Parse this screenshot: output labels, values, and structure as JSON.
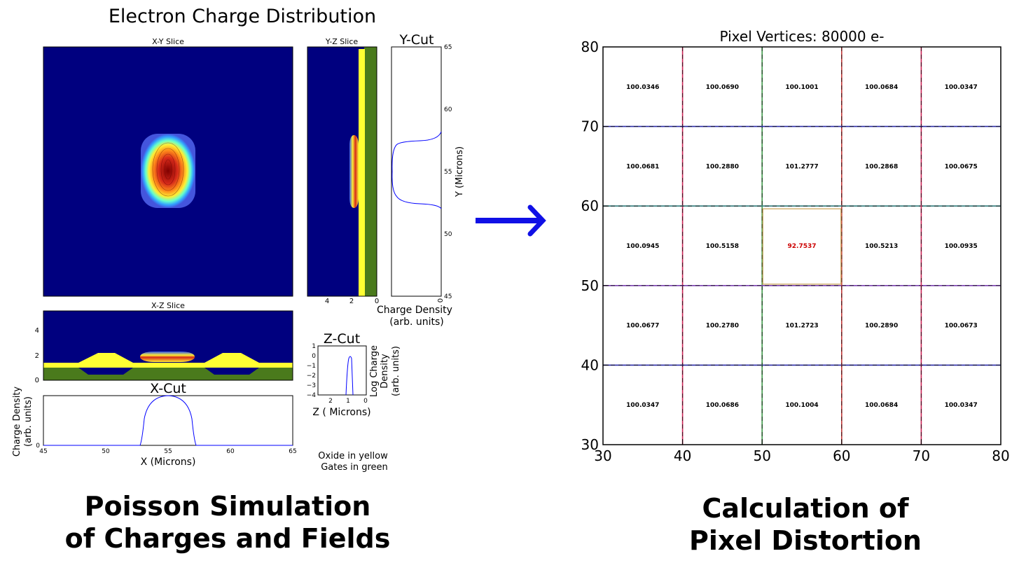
{
  "left": {
    "title": "Electron Charge Distribution",
    "xy_slice_title": "X-Y Slice",
    "yz_slice_title": "Y-Z Slice",
    "xz_slice_title": "X-Z Slice",
    "xcut_title": "X-Cut",
    "ycut_title": "Y-Cut",
    "zcut_title": "Z-Cut",
    "yz_xticks": [
      "4",
      "2",
      "0"
    ],
    "xz_yticks": [
      "4",
      "2",
      "0"
    ],
    "ycut_xtick": "0",
    "ycut_yticks": [
      "65",
      "60",
      "55",
      "50",
      "45"
    ],
    "ycut_ylabel": "Y (Microns)",
    "ycut_xlabel_1": "Charge Density",
    "ycut_xlabel_2": "(arb. units)",
    "xcut_yticks": [
      "0"
    ],
    "xcut_xticks": [
      "45",
      "50",
      "55",
      "60",
      "65"
    ],
    "xcut_xlabel": "X (Microns)",
    "xcut_ylabel_1": "Charge Density",
    "xcut_ylabel_2": "(arb. units)",
    "zcut_yticks": [
      "1",
      "0",
      "−1",
      "−2",
      "−3",
      "−4"
    ],
    "zcut_xticks": [
      "2",
      "1",
      "0"
    ],
    "zcut_xlabel": "Z ( Microns)",
    "zcut_ylabel_1": "Log Charge",
    "zcut_ylabel_2": "Density",
    "zcut_ylabel_3": "(arb. units)",
    "legend_1": "Oxide in yellow",
    "legend_2": "Gates in green",
    "caption_1": "Poisson Simulation",
    "caption_2": "of Charges and Fields"
  },
  "right": {
    "caption_1": "Calculation of",
    "caption_2": "Pixel Distortion"
  },
  "colors": {
    "deep_blue": "#00007f",
    "oxide_yellow": "#ffff33",
    "gate_green": "#4a7a1c",
    "arrow_blue": "#1010e6",
    "highlight_red": "#cc0000"
  },
  "chart_data": {
    "type": "heatmap",
    "title": "Pixel Vertices: 80000 e-",
    "x_ticks": [
      "30",
      "40",
      "50",
      "60",
      "70",
      "80"
    ],
    "y_ticks": [
      "80",
      "70",
      "60",
      "50",
      "40",
      "30"
    ],
    "xlim": [
      30,
      80
    ],
    "ylim": [
      30,
      80
    ],
    "grid_lines": [
      40,
      50,
      60,
      70
    ],
    "rows": [
      [
        "100.0346",
        "100.0690",
        "100.1001",
        "100.0684",
        "100.0347"
      ],
      [
        "100.0681",
        "100.2880",
        "101.2777",
        "100.2868",
        "100.0675"
      ],
      [
        "100.0945",
        "100.5158",
        "92.7537",
        "100.5213",
        "100.0935"
      ],
      [
        "100.0677",
        "100.2780",
        "101.2723",
        "100.2890",
        "100.0673"
      ],
      [
        "100.0347",
        "100.0686",
        "100.1004",
        "100.0684",
        "100.0347"
      ]
    ],
    "highlight_cell": [
      2,
      2
    ]
  }
}
